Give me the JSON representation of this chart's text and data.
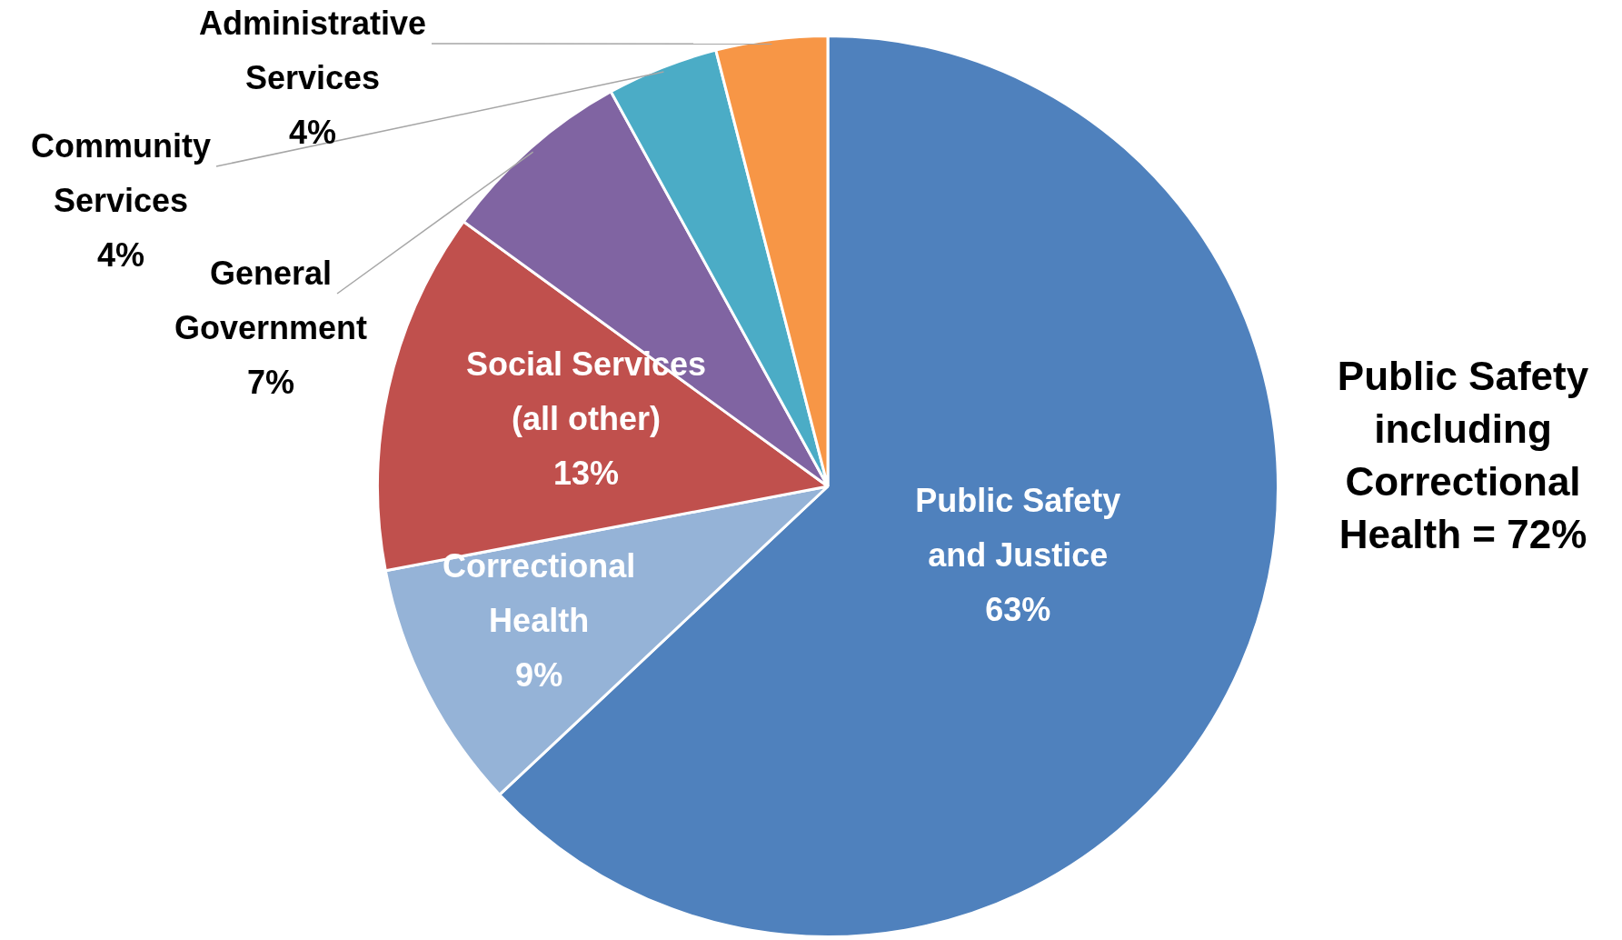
{
  "chart_data": {
    "type": "pie",
    "categories": [
      "Public Safety and Justice",
      "Correctional Health",
      "Social Services (all other)",
      "General Government",
      "Community Services",
      "Administrative Services"
    ],
    "values": [
      63,
      9,
      13,
      7,
      4,
      4
    ],
    "value_labels": [
      "63%",
      "9%",
      "13%",
      "7%",
      "4%",
      "4%"
    ],
    "colors": [
      "#4f81bd",
      "#95b3d7",
      "#c0504d",
      "#8064a2",
      "#4bacc6",
      "#f79646"
    ],
    "legend": false,
    "annotations": [
      "Public Safety including Correctional Health = 72%"
    ]
  }
}
